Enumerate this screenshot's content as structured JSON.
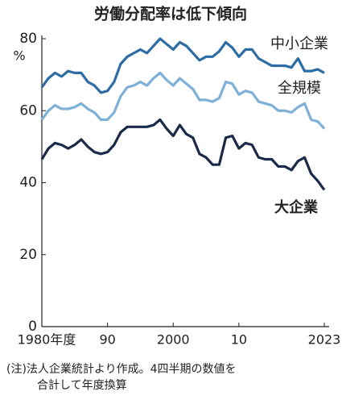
{
  "chart_data": {
    "type": "line",
    "title": "労働分配率は低下傾向",
    "y_unit": "%",
    "x": [
      1980,
      1981,
      1982,
      1983,
      1984,
      1985,
      1986,
      1987,
      1988,
      1989,
      1990,
      1991,
      1992,
      1993,
      1994,
      1995,
      1996,
      1997,
      1998,
      1999,
      2000,
      2001,
      2002,
      2003,
      2004,
      2005,
      2006,
      2007,
      2008,
      2009,
      2010,
      2011,
      2012,
      2013,
      2014,
      2015,
      2016,
      2017,
      2018,
      2019,
      2020,
      2021,
      2022,
      2023
    ],
    "series": [
      {
        "name": "中小企業",
        "color": "#2e6ca4",
        "values": [
          66.5,
          69,
          70.5,
          69.5,
          71,
          70.5,
          70.5,
          68,
          67,
          65,
          65.5,
          68,
          73,
          75,
          76,
          77,
          76,
          78,
          80,
          78.5,
          77,
          79,
          78,
          76,
          74,
          75,
          75,
          76.5,
          79,
          77.5,
          75,
          77,
          77,
          74.5,
          73.5,
          72.5,
          72.5,
          72.5,
          72,
          74.5,
          71,
          71,
          71.5,
          70.5
        ]
      },
      {
        "name": "全規模",
        "color": "#7fb0d8",
        "values": [
          57.5,
          60,
          61.5,
          60.5,
          60.5,
          61,
          62,
          60.5,
          59.5,
          57.5,
          57.5,
          59.5,
          64,
          66.5,
          67,
          68,
          67,
          69,
          70.5,
          68.5,
          67,
          69,
          67.5,
          66,
          63,
          63,
          62.5,
          63.5,
          68,
          67.5,
          64.5,
          65.5,
          65,
          62.5,
          62,
          61.5,
          60,
          60,
          59.5,
          61,
          62,
          57.5,
          57,
          55
        ]
      },
      {
        "name": "大企業",
        "color": "#1c2a4a",
        "values": [
          46.5,
          49.5,
          51,
          50.5,
          49.5,
          50.5,
          52,
          50,
          48.5,
          48,
          48.5,
          50.5,
          54,
          55.5,
          55.5,
          55.5,
          55.5,
          56,
          57.5,
          55,
          53,
          56,
          53.5,
          52.5,
          48,
          47,
          45,
          45,
          52.5,
          53,
          49.5,
          51,
          50.5,
          47,
          46.5,
          46.5,
          44.5,
          44.5,
          43.5,
          46,
          47,
          42.5,
          40.5,
          38
        ]
      }
    ],
    "xlim": [
      1980,
      2023
    ],
    "xticks": [
      {
        "value": 1980,
        "label": "1980年度"
      },
      {
        "value": 1990,
        "label": "90"
      },
      2000,
      {
        "value": 2010,
        "label": "10"
      },
      2023
    ],
    "ylim": [
      0,
      80
    ],
    "yticks": [
      0,
      20,
      40,
      60,
      80
    ],
    "grid": false,
    "note": [
      "(注)法人企業統計より作成。4四半期の数値を",
      "合計して年度換算"
    ]
  }
}
